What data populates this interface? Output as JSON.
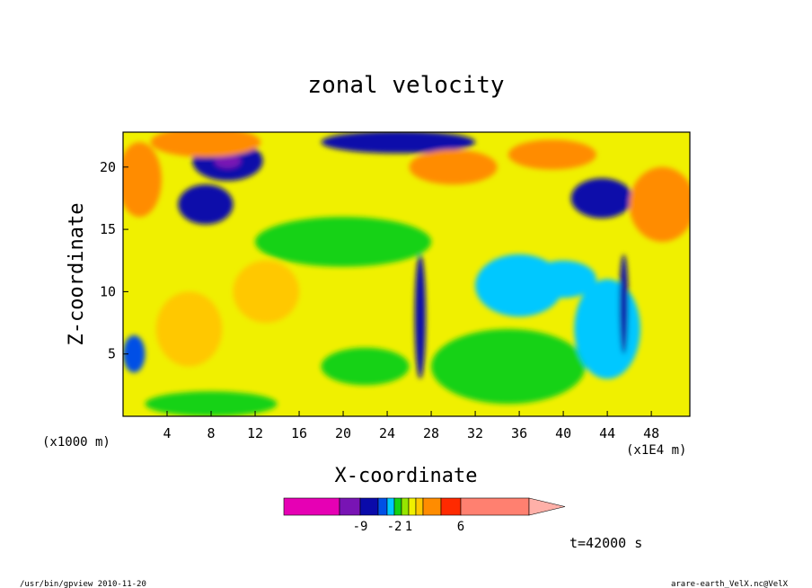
{
  "chart_data": {
    "type": "heatmap",
    "title": "zonal velocity",
    "xlabel": "X-coordinate",
    "ylabel": "Z-coordinate",
    "x_unit": "(x1E4 m)",
    "y_unit": "(x1000 m)",
    "x_ticks": [
      4,
      8,
      12,
      16,
      20,
      24,
      28,
      32,
      36,
      40,
      44,
      48
    ],
    "y_ticks": [
      5,
      10,
      15,
      20
    ],
    "xlim": [
      0,
      51.5
    ],
    "ylim": [
      0,
      22.8
    ],
    "colorbar": {
      "levels": [
        -9,
        -2,
        1,
        6
      ],
      "tick_labels": [
        "-9",
        "-2",
        "1",
        "6"
      ],
      "colors": [
        "#e600b4",
        "#7814b4",
        "#0a0aaa",
        "#0050e6",
        "#00c8ff",
        "#14d214",
        "#96e600",
        "#f0f000",
        "#ffc800",
        "#ff8c00",
        "#ff2a00",
        "#ff8070",
        "#ffb0a8"
      ]
    },
    "field": {
      "background": "#f0f000",
      "blobs": [
        {
          "x": 9.5,
          "z": 20.5,
          "rx": 3.2,
          "rz": 1.6,
          "color": "#0a0aaa"
        },
        {
          "x": 9.5,
          "z": 20.5,
          "rx": 1.2,
          "rz": 0.6,
          "color": "#7814b4"
        },
        {
          "x": 7.5,
          "z": 17,
          "rx": 2.5,
          "rz": 1.6,
          "color": "#0a0aaa"
        },
        {
          "x": 7.5,
          "z": 22,
          "rx": 5,
          "rz": 1.2,
          "color": "#ff8c00"
        },
        {
          "x": 25,
          "z": 22,
          "rx": 7,
          "rz": 0.9,
          "color": "#0a0aaa"
        },
        {
          "x": 30,
          "z": 20,
          "rx": 4,
          "rz": 1.4,
          "color": "#ff8c00"
        },
        {
          "x": 39,
          "z": 21,
          "rx": 4,
          "rz": 1.2,
          "color": "#ff8c00"
        },
        {
          "x": 43.5,
          "z": 17.5,
          "rx": 2.8,
          "rz": 1.6,
          "color": "#0a0aaa"
        },
        {
          "x": 49,
          "z": 17,
          "rx": 3,
          "rz": 3,
          "color": "#ff8c00"
        },
        {
          "x": 1.5,
          "z": 19,
          "rx": 2,
          "rz": 3,
          "color": "#ff8c00"
        },
        {
          "x": 36,
          "z": 10.5,
          "rx": 4,
          "rz": 2.5,
          "color": "#00c8ff"
        },
        {
          "x": 40,
          "z": 11,
          "rx": 3,
          "rz": 1.5,
          "color": "#00c8ff"
        },
        {
          "x": 22,
          "z": 4,
          "rx": 4,
          "rz": 1.5,
          "color": "#14d214"
        },
        {
          "x": 8,
          "z": 1,
          "rx": 6,
          "rz": 1,
          "color": "#14d214"
        },
        {
          "x": 35,
          "z": 4,
          "rx": 7,
          "rz": 3,
          "color": "#14d214"
        },
        {
          "x": 44,
          "z": 7,
          "rx": 3,
          "rz": 4,
          "color": "#00c8ff"
        },
        {
          "x": 20,
          "z": 14,
          "rx": 8,
          "rz": 2,
          "color": "#14d214"
        },
        {
          "x": 6,
          "z": 7,
          "rx": 3,
          "rz": 3,
          "color": "#ffc800"
        },
        {
          "x": 13,
          "z": 10,
          "rx": 3,
          "rz": 2.5,
          "color": "#ffc800"
        },
        {
          "x": 27,
          "z": 8,
          "rx": 0.5,
          "rz": 5,
          "color": "#0a0aaa"
        },
        {
          "x": 45.5,
          "z": 9,
          "rx": 0.4,
          "rz": 4,
          "color": "#0a0aaa"
        },
        {
          "x": 1,
          "z": 5,
          "rx": 1,
          "rz": 1.5,
          "color": "#0050e6"
        }
      ]
    }
  },
  "footer": {
    "time_label": "t=42000 s",
    "program_label": "/usr/bin/gpview   2010-11-20",
    "file_label": "arare-earth_VelX.nc@VelX"
  }
}
